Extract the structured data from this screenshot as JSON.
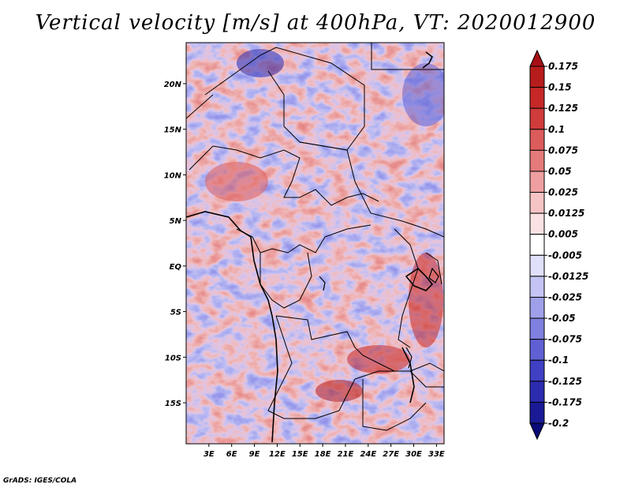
{
  "title": "Vertical velocity [m/s] at 400hPa, VT: 2020012900",
  "credit": "GrADS: IGES/COLA",
  "map": {
    "lat_ticks": [
      "20N",
      "15N",
      "10N",
      "5N",
      "EQ",
      "5S",
      "10S",
      "15S"
    ],
    "lon_ticks": [
      "3E",
      "6E",
      "9E",
      "12E",
      "15E",
      "18E",
      "21E",
      "24E",
      "27E",
      "30E",
      "33E"
    ],
    "lat_values": [
      20,
      15,
      10,
      5,
      0,
      -5,
      -10,
      -15
    ],
    "lon_values": [
      3,
      6,
      9,
      12,
      15,
      18,
      21,
      24,
      27,
      30,
      33
    ],
    "lat_range": [
      -19.5,
      24.5
    ],
    "lon_range": [
      0,
      34
    ]
  },
  "colorbar": {
    "levels": [
      "0.175",
      "0.15",
      "0.125",
      "0.1",
      "0.075",
      "0.05",
      "0.025",
      "0.0125",
      "0.005",
      "-0.005",
      "-0.0125",
      "-0.025",
      "-0.05",
      "-0.075",
      "-0.1",
      "-0.125",
      "-0.175",
      "-0.2"
    ],
    "colors": [
      "#a50f15",
      "#b71c1c",
      "#c62828",
      "#d03b3b",
      "#dc5b5b",
      "#e57a7a",
      "#ef9f9f",
      "#f6c4c4",
      "#fbe2e2",
      "#ffffff",
      "#e0e0fb",
      "#c4c4f4",
      "#a0a0ea",
      "#8080e0",
      "#6060d4",
      "#4040c4",
      "#2c2cb0",
      "#1a1a96",
      "#0a0a78"
    ]
  }
}
